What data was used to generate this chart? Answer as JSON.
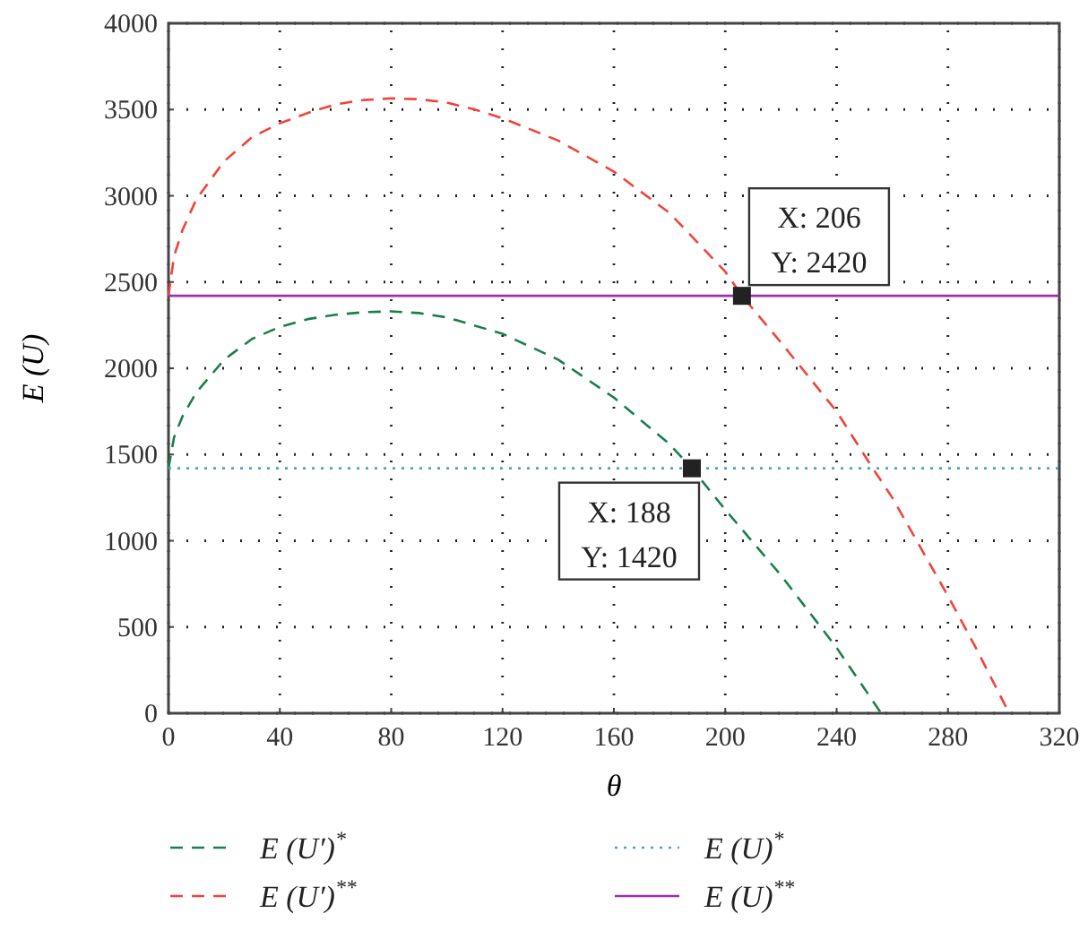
{
  "chart_data": {
    "type": "line",
    "xlabel": "θ",
    "ylabel": "E (U)",
    "xlim": [
      0,
      320
    ],
    "xticks": [
      0,
      40,
      80,
      120,
      160,
      200,
      240,
      280,
      320
    ],
    "ylim": [
      0,
      4000
    ],
    "yticks": [
      0,
      500,
      1000,
      1500,
      2000,
      2500,
      3000,
      3500,
      4000
    ],
    "grid": true,
    "legend": "bottom",
    "marker": "none",
    "series": [
      {
        "name": "E (U′)$^{*}$",
        "color": "#1a7f4b",
        "line_style": "dashed",
        "x": [
          0,
          2,
          5,
          10,
          20,
          30,
          40,
          50,
          60,
          70,
          80,
          90,
          100,
          120,
          140,
          160,
          180,
          188,
          200,
          220,
          240,
          256
        ],
        "values": [
          1420,
          1600,
          1720,
          1860,
          2050,
          2170,
          2240,
          2285,
          2310,
          2325,
          2330,
          2320,
          2295,
          2200,
          2050,
          1830,
          1560,
          1420,
          1180,
          800,
          380,
          0
        ]
      },
      {
        "name": "E (U′)$^{**}$",
        "color": "#f0443a",
        "line_style": "dashed",
        "x": [
          0,
          2,
          5,
          10,
          20,
          30,
          40,
          50,
          60,
          70,
          80,
          90,
          100,
          110,
          120,
          140,
          160,
          180,
          200,
          206,
          220,
          240,
          253,
          260,
          280,
          290,
          302
        ],
        "values": [
          2420,
          2650,
          2800,
          2980,
          3200,
          3340,
          3420,
          3480,
          3530,
          3555,
          3565,
          3560,
          3540,
          3500,
          3450,
          3320,
          3140,
          2900,
          2560,
          2420,
          2150,
          1750,
          1420,
          1250,
          680,
          380,
          0
        ]
      },
      {
        "name": "E (U)$^{*}$",
        "color": "#4aa3c8",
        "line_style": "dotted",
        "x": [
          0,
          320
        ],
        "values": [
          1420,
          1420
        ]
      },
      {
        "name": "E (U)$^{**}$",
        "color": "#9b30b0",
        "line_style": "solid",
        "x": [
          0,
          320
        ],
        "values": [
          2420,
          2420
        ]
      }
    ],
    "annotations": [
      {
        "text": "X: 206\nY: 2420",
        "x": 206,
        "y": 2420
      },
      {
        "text": "X: 188\nY: 1420",
        "x": 188,
        "y": 1420
      }
    ]
  }
}
